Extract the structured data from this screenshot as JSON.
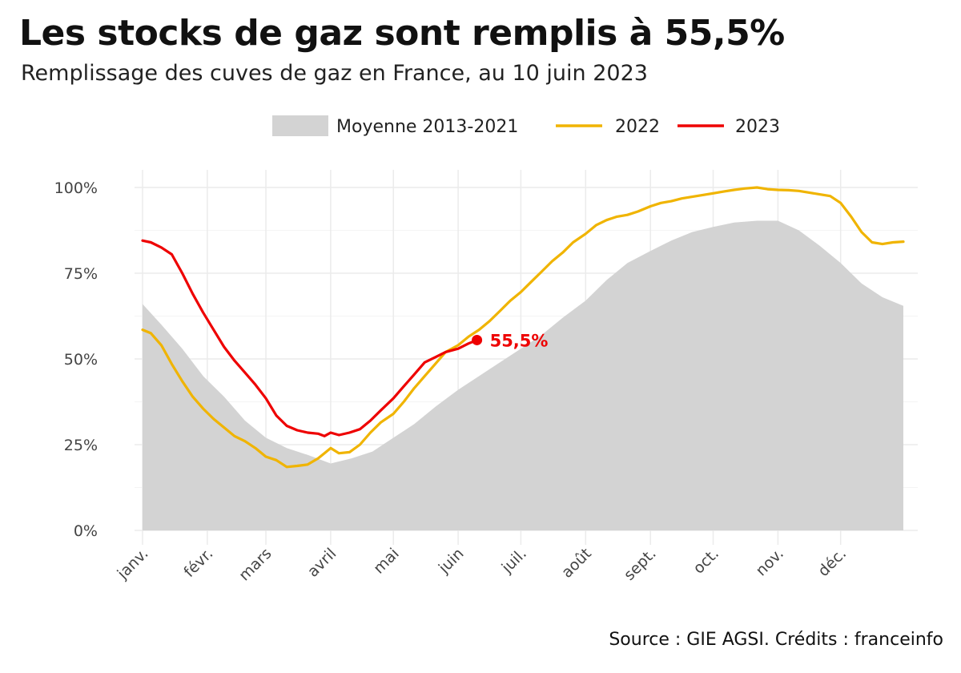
{
  "header": {
    "title": "Les stocks de gaz sont remplis à 55,5%",
    "subtitle": "Remplissage des cuves de gaz en France, au 10 juin 2023"
  },
  "footer": {
    "source": "Source : GIE AGSI. Crédits : franceinfo"
  },
  "chart_data": {
    "type": "line",
    "title": "Les stocks de gaz sont remplis à 55,5%",
    "subtitle": "Remplissage des cuves de gaz en France, au 10 juin 2023",
    "xlabel": "",
    "ylabel": "",
    "x_domain": [
      1,
      365
    ],
    "ylim": [
      0,
      100
    ],
    "y_ticks": [
      0,
      25,
      50,
      75,
      100
    ],
    "y_tick_labels": [
      "0%",
      "25%",
      "50%",
      "75%",
      "100%"
    ],
    "x_ticks": [
      1,
      32,
      60,
      91,
      121,
      152,
      182,
      213,
      244,
      274,
      305,
      335
    ],
    "x_tick_labels": [
      "janv.",
      "févr.",
      "mars",
      "avril",
      "mai",
      "juin",
      "juil.",
      "août",
      "sept.",
      "oct.",
      "nov.",
      "déc."
    ],
    "grid": true,
    "legend": "top",
    "legend_labels": [
      "Moyenne 2013-2021",
      "2022",
      "2023"
    ],
    "colors": {
      "average": "#d3d3d3",
      "y2022": "#f0b400",
      "y2023": "#ee0000",
      "grid": "#ebebeb",
      "axis_text": "#444444"
    },
    "annotation": {
      "text": "55,5%",
      "x": 161,
      "y": 55.5
    },
    "series": [
      {
        "name": "Moyenne 2013-2021",
        "kind": "area",
        "x": [
          1,
          10,
          20,
          30,
          40,
          50,
          60,
          70,
          80,
          91,
          101,
          111,
          121,
          131,
          141,
          152,
          162,
          172,
          182,
          192,
          202,
          213,
          223,
          233,
          244,
          254,
          264,
          274,
          284,
          295,
          305,
          315,
          325,
          335,
          345,
          355,
          365
        ],
        "y": [
          66,
          60,
          53,
          45,
          39,
          32,
          27,
          24,
          22,
          19.5,
          21,
          23,
          27,
          31,
          36,
          41,
          45,
          49,
          53,
          57,
          62,
          67,
          73,
          78,
          81.5,
          84.5,
          87,
          88.5,
          89.8,
          90.3,
          90.3,
          87.5,
          83,
          78,
          72,
          68,
          65.5
        ]
      },
      {
        "name": "2022",
        "kind": "line",
        "x": [
          1,
          5,
          10,
          15,
          20,
          25,
          30,
          35,
          40,
          45,
          50,
          55,
          60,
          65,
          70,
          75,
          80,
          85,
          88,
          91,
          95,
          100,
          105,
          110,
          115,
          121,
          126,
          131,
          136,
          141,
          146,
          152,
          157,
          162,
          167,
          172,
          177,
          182,
          187,
          192,
          197,
          202,
          207,
          213,
          218,
          223,
          228,
          233,
          238,
          244,
          249,
          254,
          259,
          264,
          269,
          274,
          279,
          284,
          289,
          295,
          300,
          305,
          310,
          315,
          320,
          325,
          330,
          335,
          340,
          345,
          350,
          355,
          360,
          365
        ],
        "y": [
          58.5,
          57.5,
          54,
          48.5,
          43.5,
          39,
          35.5,
          32.5,
          30,
          27.5,
          26,
          24,
          21.5,
          20.5,
          18.5,
          18.8,
          19.2,
          21,
          22.5,
          24,
          22.5,
          22.8,
          25,
          28.5,
          31.5,
          34,
          37.5,
          41.5,
          45,
          48.5,
          52,
          54,
          56.5,
          58.5,
          61,
          64,
          67,
          69.5,
          72.5,
          75.5,
          78.5,
          81,
          84,
          86.5,
          89,
          90.5,
          91.5,
          92,
          93,
          94.5,
          95.5,
          96,
          96.8,
          97.3,
          97.8,
          98.3,
          98.8,
          99.3,
          99.7,
          100,
          99.5,
          99.3,
          99.2,
          99,
          98.5,
          98,
          97.5,
          95.5,
          91.5,
          87,
          84,
          83.5,
          84,
          84.2
        ]
      },
      {
        "name": "2023",
        "kind": "line",
        "x": [
          1,
          5,
          10,
          15,
          20,
          25,
          30,
          35,
          40,
          45,
          50,
          55,
          60,
          65,
          70,
          75,
          80,
          85,
          88,
          91,
          95,
          100,
          105,
          110,
          115,
          121,
          126,
          131,
          136,
          141,
          146,
          152,
          157,
          161
        ],
        "y": [
          84.5,
          84,
          82.5,
          80.5,
          75,
          69,
          63.5,
          58.5,
          53.5,
          49.5,
          46,
          42.5,
          38.5,
          33.5,
          30.5,
          29.2,
          28.5,
          28.2,
          27.5,
          28.5,
          27.8,
          28.5,
          29.5,
          32,
          35,
          38.5,
          42,
          45.5,
          49,
          50.5,
          52,
          53,
          54.5,
          55.5
        ]
      }
    ]
  }
}
